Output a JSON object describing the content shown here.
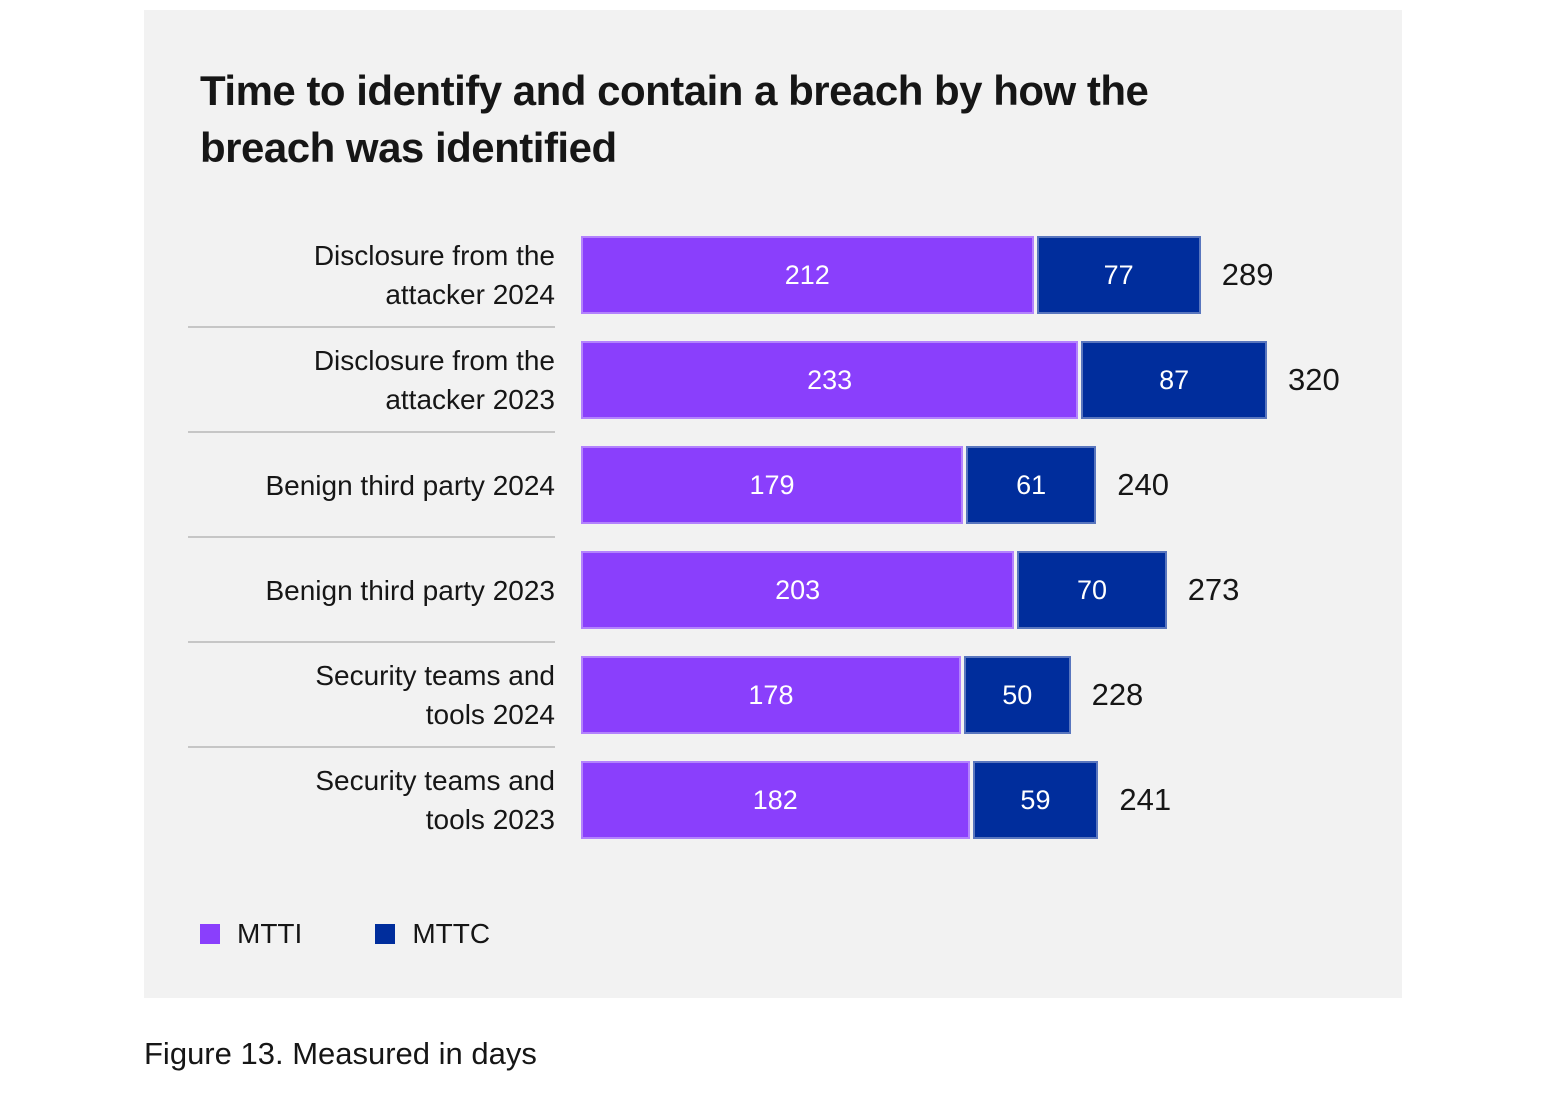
{
  "panel": {
    "title": "Time to identify and contain a breach by how the breach was identified"
  },
  "chart_data": {
    "type": "bar",
    "orientation": "horizontal",
    "stacked": true,
    "unit": "days",
    "title": "Time to identify and contain a breach by how the breach was identified",
    "categories": [
      "Disclosure from the\nattacker 2024",
      "Disclosure from the\nattacker 2023",
      "Benign third party 2024",
      "Benign third party 2023",
      "Security teams and\ntools 2024",
      "Security teams and\ntools 2023"
    ],
    "series": [
      {
        "name": "MTTI",
        "color": "#8a3ffc",
        "values": [
          212,
          233,
          179,
          203,
          178,
          182
        ]
      },
      {
        "name": "MTTC",
        "color": "#002d9c",
        "values": [
          77,
          87,
          61,
          70,
          50,
          59
        ]
      }
    ],
    "totals": [
      289,
      320,
      240,
      273,
      228,
      241
    ],
    "xlim": [
      0,
      320
    ],
    "grid": false,
    "legend": [
      {
        "label": "MTTI",
        "color": "#8a3ffc"
      },
      {
        "label": "MTTC",
        "color": "#002d9c"
      }
    ],
    "legend_position": "bottom-left",
    "value_label_style": "white-inside-segment",
    "total_label_style": "dark-right-of-bar"
  },
  "caption": "Figure 13. Measured in days",
  "colors": {
    "page_background": "#ffffff",
    "panel_background": "#f2f2f2",
    "text": "#161616",
    "divider": "#c6c6c6",
    "mtti": "#8a3ffc",
    "mttc": "#002d9c"
  }
}
